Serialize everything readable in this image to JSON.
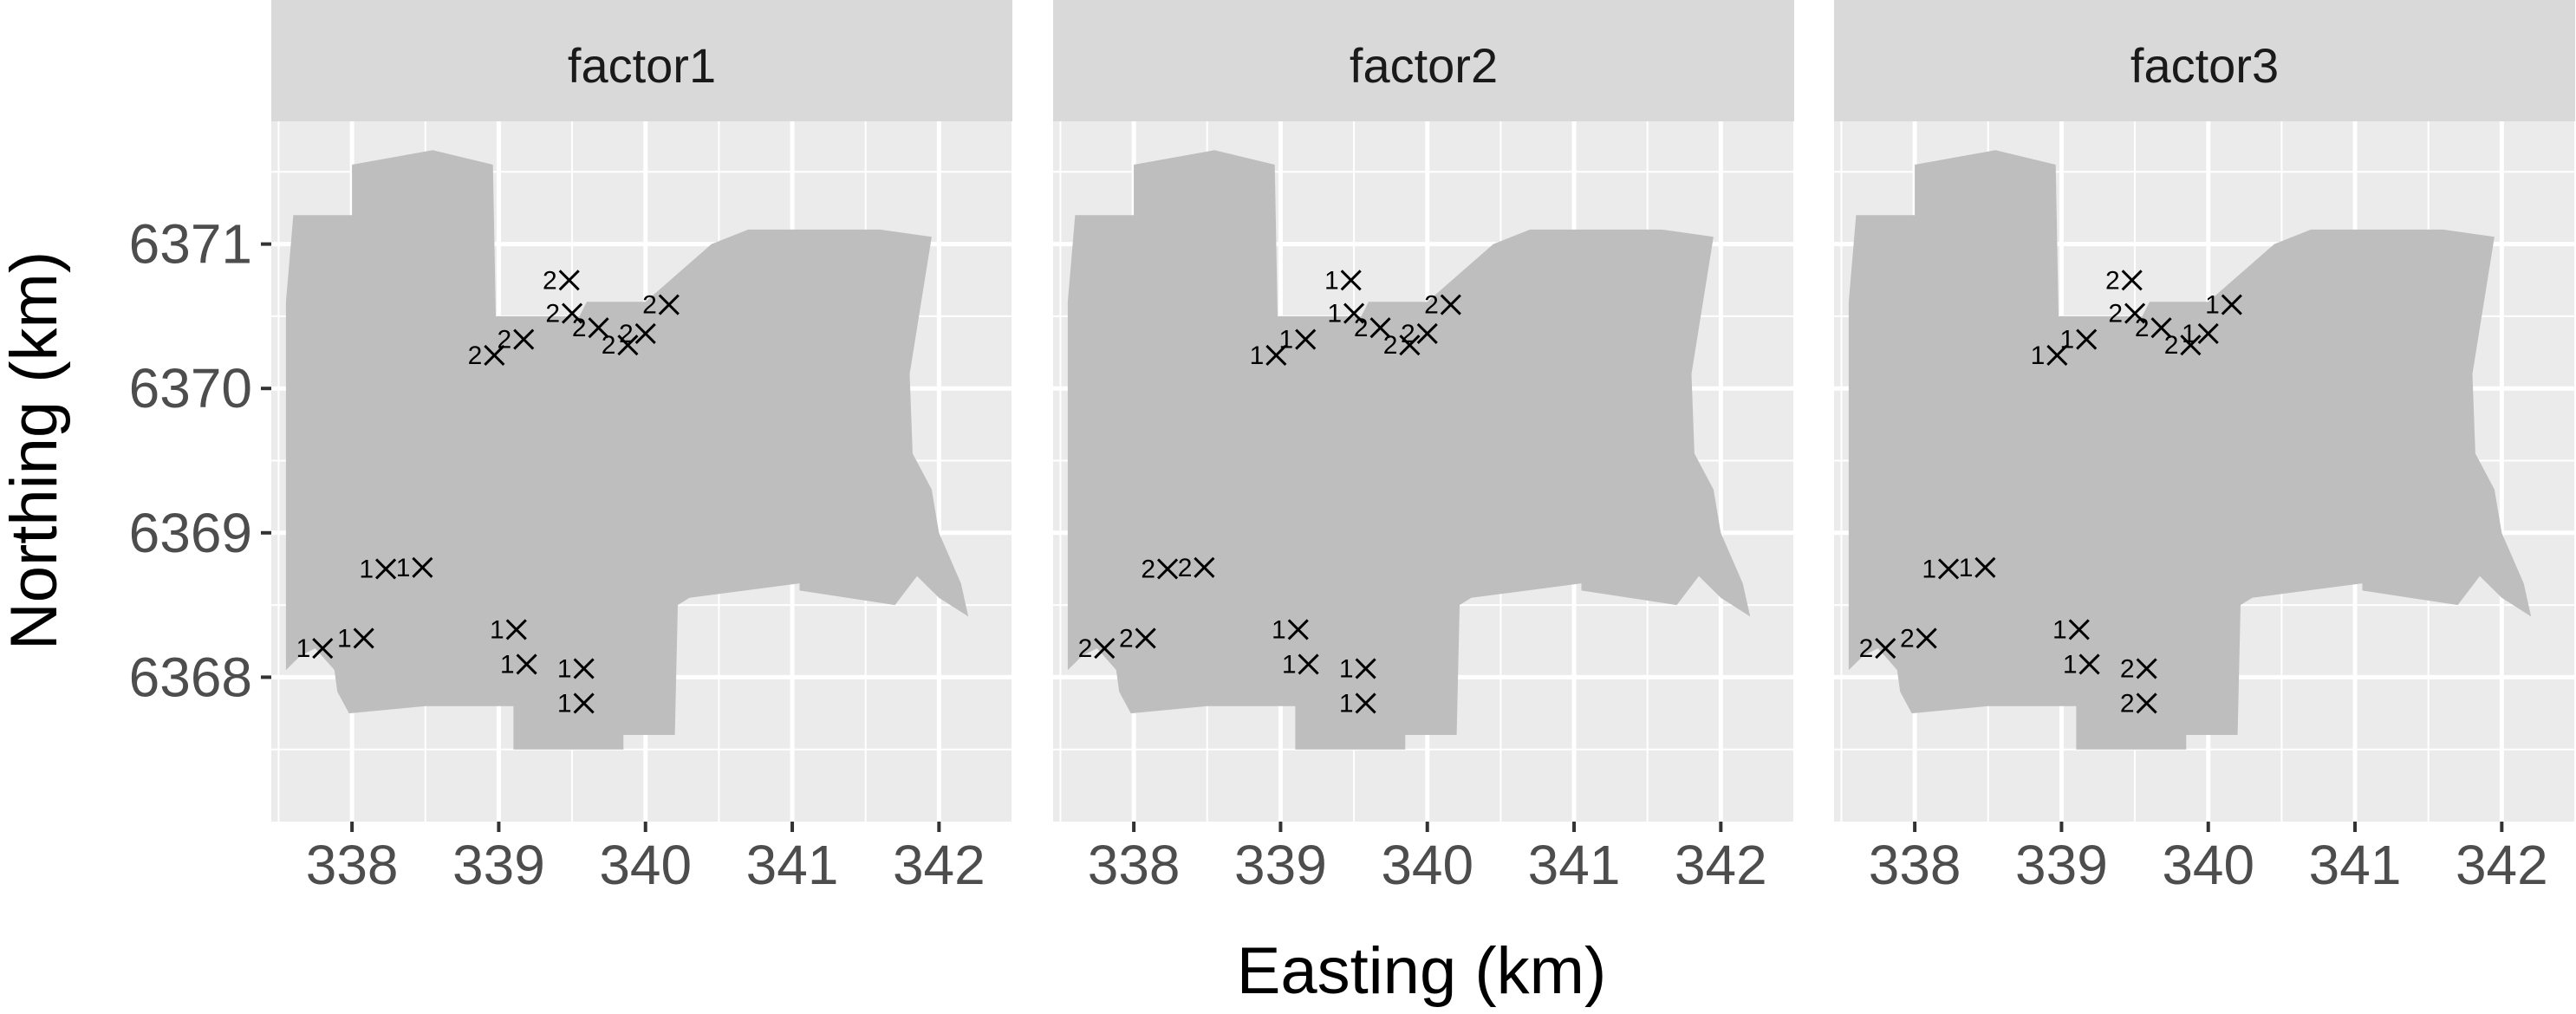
{
  "chart_data": {
    "type": "scatter",
    "facet_var": "factor",
    "panels": [
      "factor1",
      "factor2",
      "factor3"
    ],
    "xlabel": "Easting (km)",
    "ylabel": "Northing (km)",
    "xlim": [
      337.45,
      342.5
    ],
    "ylim": [
      6367.0,
      6371.85
    ],
    "x_ticks": [
      338,
      339,
      340,
      341,
      342
    ],
    "x_tick_labels": [
      "338",
      "339",
      "340",
      "341",
      "342"
    ],
    "y_ticks": [
      6368,
      6369,
      6370,
      6371
    ],
    "y_tick_labels": [
      "6368",
      "6369",
      "6370",
      "6371"
    ],
    "grid": true,
    "region_polygon": [
      [
        337.55,
        6368.05
      ],
      [
        337.65,
        6368.15
      ],
      [
        337.75,
        6368.2
      ],
      [
        337.88,
        6368.05
      ],
      [
        337.9,
        6367.9
      ],
      [
        337.98,
        6367.75
      ],
      [
        338.5,
        6367.8
      ],
      [
        339.1,
        6367.8
      ],
      [
        339.1,
        6367.5
      ],
      [
        339.85,
        6367.5
      ],
      [
        339.85,
        6367.6
      ],
      [
        340.2,
        6367.6
      ],
      [
        340.22,
        6368.5
      ],
      [
        340.3,
        6368.55
      ],
      [
        341.05,
        6368.65
      ],
      [
        341.05,
        6368.6
      ],
      [
        341.7,
        6368.5
      ],
      [
        341.85,
        6368.7
      ],
      [
        342.0,
        6368.55
      ],
      [
        342.2,
        6368.42
      ],
      [
        342.15,
        6368.65
      ],
      [
        342.0,
        6369.0
      ],
      [
        341.95,
        6369.3
      ],
      [
        341.82,
        6369.55
      ],
      [
        341.8,
        6370.1
      ],
      [
        341.95,
        6371.05
      ],
      [
        341.6,
        6371.1
      ],
      [
        340.7,
        6371.1
      ],
      [
        340.45,
        6371.0
      ],
      [
        340.0,
        6370.6
      ],
      [
        339.6,
        6370.6
      ],
      [
        339.55,
        6370.5
      ],
      [
        338.98,
        6370.5
      ],
      [
        338.96,
        6371.55
      ],
      [
        338.55,
        6371.65
      ],
      [
        338.0,
        6371.55
      ],
      [
        338.0,
        6371.2
      ],
      [
        337.6,
        6371.2
      ],
      [
        337.55,
        6370.6
      ],
      [
        337.55,
        6368.05
      ]
    ],
    "sites": [
      {
        "x": 337.8,
        "y": 6368.2
      },
      {
        "x": 338.08,
        "y": 6368.27
      },
      {
        "x": 338.23,
        "y": 6368.75
      },
      {
        "x": 338.48,
        "y": 6368.76
      },
      {
        "x": 338.97,
        "y": 6370.23
      },
      {
        "x": 339.17,
        "y": 6370.34
      },
      {
        "x": 339.12,
        "y": 6368.33
      },
      {
        "x": 339.19,
        "y": 6368.09
      },
      {
        "x": 339.48,
        "y": 6370.75
      },
      {
        "x": 339.5,
        "y": 6370.52
      },
      {
        "x": 339.68,
        "y": 6370.42
      },
      {
        "x": 339.58,
        "y": 6368.06
      },
      {
        "x": 339.58,
        "y": 6367.82
      },
      {
        "x": 339.88,
        "y": 6370.3
      },
      {
        "x": 340.0,
        "y": 6370.38
      },
      {
        "x": 340.16,
        "y": 6370.58
      }
    ],
    "series": [
      {
        "panel": "factor1",
        "labels": [
          "1",
          "1",
          "1",
          "1",
          "2",
          "2",
          "1",
          "1",
          "2",
          "2",
          "2",
          "1",
          "1",
          "2",
          "2",
          "2"
        ]
      },
      {
        "panel": "factor2",
        "labels": [
          "2",
          "2",
          "2",
          "2",
          "1",
          "1",
          "1",
          "1",
          "1",
          "1",
          "2",
          "1",
          "1",
          "2",
          "2",
          "2"
        ]
      },
      {
        "panel": "factor3",
        "labels": [
          "2",
          "2",
          "1",
          "1",
          "1",
          "1",
          "1",
          "1",
          "2",
          "2",
          "2",
          "2",
          "2",
          "2",
          "1",
          "1"
        ]
      }
    ],
    "colors": {
      "panel_bg": "#ebebeb",
      "strip_bg": "#d9d9d9",
      "grid_major": "#ffffff",
      "region_fill": "#bebebe",
      "marker": "#000000"
    }
  }
}
